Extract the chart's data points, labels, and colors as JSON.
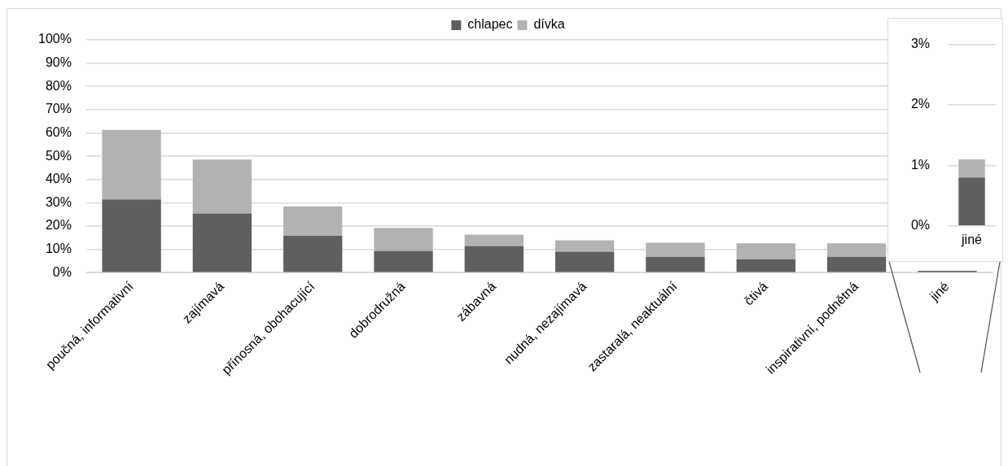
{
  "chart_data": [
    {
      "type": "bar",
      "stacked": true,
      "grid": "y",
      "legend": "top",
      "categories": [
        "poučná, informativní",
        "zajímavá",
        "přínosná, obohacující",
        "dobrodružná",
        "zábavná",
        "nudná, nezajímavá",
        "zastaralá, neaktuální",
        "čtivá",
        "inspirativní, podnětná",
        "jiné"
      ],
      "series": [
        {
          "name": "chlapec",
          "color": "#5f5f5f",
          "values": [
            31.4,
            25.4,
            15.8,
            9.3,
            11.4,
            9.0,
            6.8,
            5.8,
            6.8,
            0.8
          ]
        },
        {
          "name": "dívka",
          "color": "#b2b2b2",
          "values": [
            29.9,
            23.2,
            12.7,
            9.9,
            4.9,
            4.9,
            6.0,
            6.8,
            5.8,
            null
          ]
        }
      ],
      "ylim": [
        0,
        100
      ],
      "yticks": [
        {
          "value": 0,
          "label": "0%"
        },
        {
          "value": 10,
          "label": "10%"
        },
        {
          "value": 20,
          "label": "20%"
        },
        {
          "value": 30,
          "label": "30%"
        },
        {
          "value": 40,
          "label": "40%"
        },
        {
          "value": 50,
          "label": "50%"
        },
        {
          "value": 60,
          "label": "60%"
        },
        {
          "value": 70,
          "label": "70%"
        },
        {
          "value": 80,
          "label": "80%"
        },
        {
          "value": 90,
          "label": "90%"
        },
        {
          "value": 100,
          "label": "100%"
        }
      ]
    },
    {
      "type": "bar",
      "stacked": true,
      "grid": "y",
      "categories": [
        "jiné"
      ],
      "series": [
        {
          "color": "#5f5f5f",
          "values": [
            0.8
          ]
        },
        {
          "color": "#b2b2b2",
          "values": [
            0.3
          ]
        }
      ],
      "ylim": [
        0,
        3
      ],
      "yticks": [
        {
          "value": 0,
          "label": "0%"
        },
        {
          "value": 1,
          "label": "1%"
        },
        {
          "value": 2,
          "label": "2%"
        },
        {
          "value": 3,
          "label": "3%"
        }
      ]
    }
  ]
}
